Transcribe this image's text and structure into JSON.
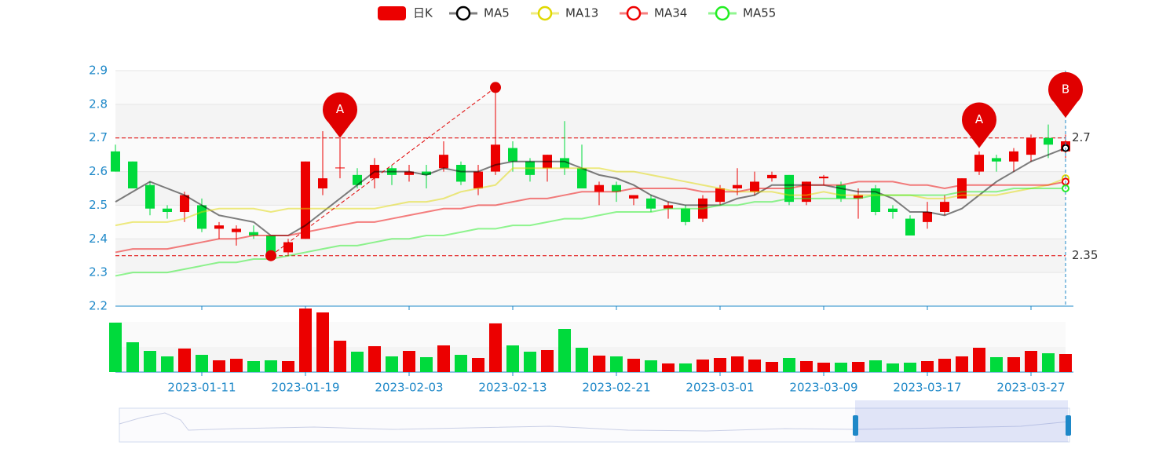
{
  "chart_data": {
    "type": "candlestick",
    "categories": [
      null,
      null,
      null,
      null,
      null,
      "2023-01-11",
      null,
      null,
      null,
      null,
      null,
      "2023-01-19",
      null,
      null,
      null,
      null,
      null,
      "2023-02-03",
      null,
      null,
      null,
      null,
      null,
      "2023-02-13",
      null,
      null,
      null,
      null,
      null,
      "2023-02-21",
      null,
      null,
      null,
      null,
      null,
      "2023-03-01",
      null,
      null,
      null,
      null,
      null,
      "2023-03-09",
      null,
      null,
      null,
      null,
      null,
      "2023-03-17",
      null,
      null,
      null,
      null,
      null,
      "2023-03-27",
      null,
      null
    ],
    "candles": {
      "name": "日K",
      "up_color": "#ec0000",
      "down_color": "#00da3c",
      "open": [
        2.66,
        2.63,
        2.56,
        2.49,
        2.48,
        2.5,
        2.43,
        2.42,
        2.42,
        2.41,
        2.36,
        2.4,
        2.55,
        2.61,
        2.59,
        2.58,
        2.61,
        2.59,
        2.6,
        2.61,
        2.62,
        2.55,
        2.6,
        2.67,
        2.63,
        2.61,
        2.64,
        2.61,
        2.54,
        2.56,
        2.52,
        2.52,
        2.49,
        2.49,
        2.46,
        2.51,
        2.55,
        2.54,
        2.58,
        2.59,
        2.51,
        2.58,
        2.56,
        2.52,
        2.55,
        2.49,
        2.46,
        2.45,
        2.48,
        2.52,
        2.6,
        2.64,
        2.63,
        2.65,
        2.7,
        2.66
      ],
      "close": [
        2.6,
        2.55,
        2.49,
        2.48,
        2.53,
        2.43,
        2.44,
        2.43,
        2.41,
        2.35,
        2.39,
        2.63,
        2.58,
        2.612,
        2.56,
        2.62,
        2.59,
        2.6,
        2.59,
        2.65,
        2.57,
        2.6,
        2.68,
        2.63,
        2.59,
        2.65,
        2.61,
        2.55,
        2.56,
        2.54,
        2.53,
        2.49,
        2.5,
        2.45,
        2.52,
        2.55,
        2.56,
        2.57,
        2.59,
        2.51,
        2.57,
        2.585,
        2.52,
        2.53,
        2.48,
        2.48,
        2.41,
        2.48,
        2.51,
        2.58,
        2.65,
        2.63,
        2.66,
        2.7,
        2.68,
        2.69
      ],
      "low": [
        2.6,
        2.55,
        2.47,
        2.46,
        2.45,
        2.42,
        2.4,
        2.38,
        2.4,
        2.35,
        2.35,
        2.4,
        2.53,
        2.58,
        2.55,
        2.55,
        2.56,
        2.57,
        2.55,
        2.6,
        2.56,
        2.53,
        2.59,
        2.6,
        2.57,
        2.57,
        2.59,
        2.55,
        2.5,
        2.51,
        2.5,
        2.48,
        2.46,
        2.44,
        2.45,
        2.5,
        2.53,
        2.53,
        2.57,
        2.5,
        2.5,
        2.56,
        2.51,
        2.46,
        2.47,
        2.46,
        2.41,
        2.43,
        2.47,
        2.52,
        2.59,
        2.6,
        2.6,
        2.63,
        2.64,
        2.64
      ],
      "high": [
        2.68,
        2.63,
        2.57,
        2.5,
        2.54,
        2.52,
        2.45,
        2.44,
        2.44,
        2.41,
        2.4,
        2.63,
        2.72,
        2.7,
        2.61,
        2.64,
        2.62,
        2.62,
        2.62,
        2.69,
        2.63,
        2.62,
        2.85,
        2.69,
        2.64,
        2.65,
        2.75,
        2.68,
        2.57,
        2.57,
        2.53,
        2.53,
        2.51,
        2.5,
        2.53,
        2.56,
        2.61,
        2.6,
        2.6,
        2.59,
        2.57,
        2.59,
        2.57,
        2.55,
        2.56,
        2.5,
        2.47,
        2.51,
        2.53,
        2.58,
        2.66,
        2.65,
        2.67,
        2.71,
        2.74,
        2.71
      ]
    },
    "series": [
      {
        "name": "MA5",
        "color": "#000000",
        "values": [
          2.51,
          2.54,
          2.57,
          2.55,
          2.53,
          2.5,
          2.47,
          2.46,
          2.45,
          2.41,
          2.41,
          2.44,
          2.48,
          2.52,
          2.56,
          2.6,
          2.6,
          2.6,
          2.59,
          2.61,
          2.6,
          2.6,
          2.62,
          2.63,
          2.63,
          2.63,
          2.63,
          2.61,
          2.59,
          2.58,
          2.56,
          2.53,
          2.51,
          2.5,
          2.5,
          2.5,
          2.52,
          2.53,
          2.56,
          2.56,
          2.56,
          2.56,
          2.55,
          2.54,
          2.54,
          2.52,
          2.48,
          2.48,
          2.47,
          2.49,
          2.53,
          2.57,
          2.6,
          2.63,
          2.65,
          2.67
        ]
      },
      {
        "name": "MA13",
        "color": "#e0d800",
        "values": [
          2.44,
          2.45,
          2.45,
          2.45,
          2.46,
          2.48,
          2.49,
          2.49,
          2.49,
          2.48,
          2.49,
          2.49,
          2.49,
          2.49,
          2.49,
          2.49,
          2.5,
          2.51,
          2.51,
          2.52,
          2.54,
          2.55,
          2.56,
          2.61,
          2.61,
          2.61,
          2.61,
          2.61,
          2.61,
          2.6,
          2.6,
          2.59,
          2.58,
          2.57,
          2.56,
          2.55,
          2.54,
          2.54,
          2.54,
          2.53,
          2.53,
          2.54,
          2.53,
          2.53,
          2.53,
          2.53,
          2.53,
          2.52,
          2.52,
          2.53,
          2.53,
          2.53,
          2.54,
          2.55,
          2.56,
          2.58
        ]
      },
      {
        "name": "MA34",
        "color": "#ee0000",
        "values": [
          2.36,
          2.37,
          2.37,
          2.37,
          2.38,
          2.39,
          2.4,
          2.4,
          2.41,
          2.41,
          2.41,
          2.42,
          2.43,
          2.44,
          2.45,
          2.45,
          2.46,
          2.47,
          2.48,
          2.49,
          2.49,
          2.5,
          2.5,
          2.51,
          2.52,
          2.52,
          2.53,
          2.54,
          2.54,
          2.54,
          2.55,
          2.55,
          2.55,
          2.55,
          2.54,
          2.54,
          2.54,
          2.55,
          2.55,
          2.55,
          2.56,
          2.56,
          2.56,
          2.57,
          2.57,
          2.57,
          2.56,
          2.56,
          2.55,
          2.56,
          2.56,
          2.56,
          2.56,
          2.56,
          2.56,
          2.57
        ]
      },
      {
        "name": "MA55",
        "color": "#22ee22",
        "values": [
          2.29,
          2.3,
          2.3,
          2.3,
          2.31,
          2.32,
          2.33,
          2.33,
          2.34,
          2.34,
          2.35,
          2.36,
          2.37,
          2.38,
          2.38,
          2.39,
          2.4,
          2.4,
          2.41,
          2.41,
          2.42,
          2.43,
          2.43,
          2.44,
          2.44,
          2.45,
          2.46,
          2.46,
          2.47,
          2.48,
          2.48,
          2.48,
          2.49,
          2.49,
          2.49,
          2.5,
          2.5,
          2.51,
          2.51,
          2.52,
          2.52,
          2.52,
          2.52,
          2.52,
          2.53,
          2.53,
          2.53,
          2.53,
          2.53,
          2.54,
          2.54,
          2.54,
          2.55,
          2.55,
          2.55,
          2.55
        ]
      }
    ],
    "ylim": [
      2.2,
      2.9
    ],
    "yticks": [
      2.2,
      2.3,
      2.4,
      2.5,
      2.6,
      2.7,
      2.8,
      2.9
    ],
    "grid": true,
    "mark_lines": [
      {
        "value": 2.7
      },
      {
        "value": 2.35
      }
    ],
    "mark_line_color": "#e00000",
    "trend_line": {
      "from": {
        "index": 9,
        "value": 2.35
      },
      "to": {
        "index": 22,
        "value": 2.85
      }
    },
    "mark_points": [
      {
        "label": "A",
        "index": 13,
        "value": 2.7
      },
      {
        "label": "A",
        "index": 50,
        "value": 2.67
      },
      {
        "label": "B",
        "index": 55,
        "value": 2.76
      }
    ],
    "volume": {
      "values": [
        63,
        38,
        27,
        20,
        30,
        22,
        15,
        17,
        14,
        15,
        14,
        81,
        76,
        40,
        26,
        33,
        20,
        27,
        19,
        34,
        22,
        18,
        62,
        34,
        26,
        28,
        55,
        31,
        21,
        20,
        17,
        15,
        11,
        11,
        16,
        18,
        20,
        16,
        13,
        18,
        14,
        12,
        12,
        13,
        15,
        11,
        12,
        14,
        17,
        20,
        31,
        19,
        19,
        27,
        24,
        23
      ],
      "ylim": [
        0,
        81
      ]
    }
  }
}
